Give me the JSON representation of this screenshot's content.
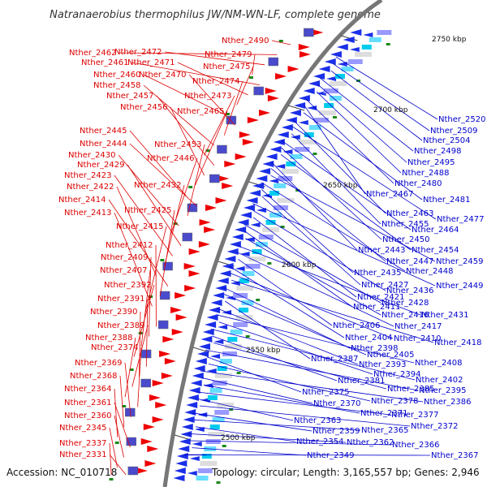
{
  "title": "Natranaerobius thermophilus JW/NM-WN-LF, complete genome",
  "accession_text": "Accession: NC_010718",
  "summary_text": "Topology: circular; Length: 3,165,557 bp; Genes: 2,946",
  "colors": {
    "left_label": "#dd0000",
    "right_label": "#0000cc",
    "backbone": "#777777",
    "tick": "#444444",
    "forward_gene": "#ee0000",
    "reverse_gene": "#1a2fe8"
  },
  "kbp_marks": [
    "2750 kbp",
    "2700 kbp",
    "2650 kbp",
    "2600 kbp",
    "2550 kbp",
    "2500 kbp"
  ],
  "left_labels": [
    "Nther_2490",
    "Nther_2462",
    "Nther_2472",
    "Nther_2479",
    "Nther_2461",
    "Nther_2471",
    "Nther_2475",
    "Nther_2460",
    "Nther_2470",
    "Nther_2474",
    "Nther_2458",
    "Nther_2473",
    "Nther_2457",
    "Nther_2456",
    "Nther_2465",
    "Nther_2445",
    "Nther_2444",
    "Nther_2453",
    "Nther_2430",
    "Nther_2446",
    "Nther_2429",
    "Nther_2423",
    "Nther_2432",
    "Nther_2422",
    "Nther_2414",
    "Nther_2425",
    "Nther_2413",
    "Nther_2415",
    "Nther_2412",
    "Nther_2409",
    "Nther_2407",
    "Nther_2392",
    "Nther_2391",
    "Nther_2390",
    "Nther_2389",
    "Nther_2388",
    "Nther_2374",
    "Nther_2369",
    "Nther_2368",
    "Nther_2364",
    "Nther_2361",
    "Nther_2360",
    "Nther_2345",
    "Nther_2337",
    "Nther_2331"
  ],
  "right_labels": [
    "Nther_2520",
    "Nther_2509",
    "Nther_2504",
    "Nther_2498",
    "Nther_2495",
    "Nther_2488",
    "Nther_2480",
    "Nther_2467",
    "Nther_2481",
    "Nther_2463",
    "Nther_2477",
    "Nther_2455",
    "Nther_2464",
    "Nther_2450",
    "Nther_2454",
    "Nther_2443",
    "Nther_2447",
    "Nther_2459",
    "Nther_2448",
    "Nther_2435",
    "Nther_2427",
    "Nther_2449",
    "Nther_2436",
    "Nther_2421",
    "Nther_2428",
    "Nther_2411",
    "Nther_2416",
    "Nther_2431",
    "Nther_2417",
    "Nther_2406",
    "Nther_2404",
    "Nther_2410",
    "Nther_2418",
    "Nther_2398",
    "Nther_2405",
    "Nther_2387",
    "Nther_2393",
    "Nther_2408",
    "Nther_2394",
    "Nther_2402",
    "Nther_2381",
    "Nther_2385",
    "Nther_2395",
    "Nther_2375",
    "Nther_2378",
    "Nther_2386",
    "Nther_2370",
    "Nther_2371",
    "Nther_2377",
    "Nther_2363",
    "Nther_2372",
    "Nther_2359",
    "Nther_2365",
    "Nther_2354",
    "Nther_2362",
    "Nther_2366",
    "Nther_2349",
    "Nther_2367"
  ]
}
